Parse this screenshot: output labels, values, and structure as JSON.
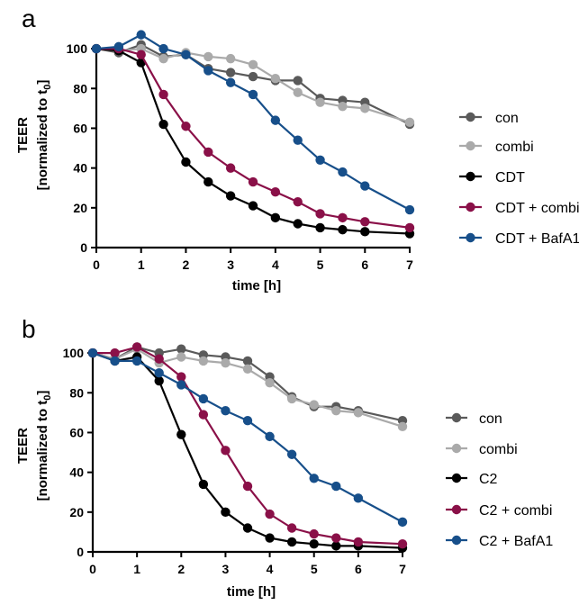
{
  "chart_data": [
    {
      "panel_label": "a",
      "type": "line",
      "xlabel": "time [h]",
      "ylabel_main": "TEER",
      "ylabel_sub": "[normalized to t",
      "ylabel_sub_subscript": "0",
      "ylabel_sub_end": "]",
      "xlim": [
        0,
        7
      ],
      "ylim": [
        0,
        110
      ],
      "xticks": [
        0,
        1,
        2,
        3,
        4,
        5,
        6,
        7
      ],
      "yticks": [
        0,
        20,
        40,
        60,
        80,
        100
      ],
      "legend_placement": "right",
      "grid": false,
      "x": [
        0,
        0.5,
        1,
        1.5,
        2,
        2.5,
        3,
        3.5,
        4,
        4.5,
        5,
        5.5,
        6,
        7
      ],
      "series": [
        {
          "name": "con",
          "color": "#5a5a5a",
          "values": [
            100,
            98,
            102,
            96,
            97,
            90,
            88,
            86,
            84,
            84,
            75,
            74,
            73,
            62
          ]
        },
        {
          "name": "combi",
          "color": "#aaaaaa",
          "values": [
            100,
            99,
            100,
            95,
            98,
            96,
            95,
            92,
            85,
            78,
            73,
            71,
            70,
            63
          ]
        },
        {
          "name": "CDT",
          "color": "#000000",
          "values": [
            100,
            99,
            93,
            62,
            43,
            33,
            26,
            21,
            15,
            12,
            10,
            9,
            8,
            7
          ]
        },
        {
          "name": "CDT + combi",
          "color": "#8a1048",
          "values": [
            100,
            100,
            97,
            77,
            61,
            48,
            40,
            33,
            28,
            23,
            17,
            15,
            13,
            10
          ]
        },
        {
          "name": "CDT + BafA1",
          "color": "#174f8a",
          "values": [
            100,
            101,
            107,
            100,
            97,
            89,
            83,
            77,
            64,
            54,
            44,
            38,
            31,
            19
          ]
        }
      ]
    },
    {
      "panel_label": "b",
      "type": "line",
      "xlabel": "time [h]",
      "ylabel_main": "TEER",
      "ylabel_sub": "[normalized to t",
      "ylabel_sub_subscript": "0",
      "ylabel_sub_end": "]",
      "xlim": [
        0,
        7
      ],
      "ylim": [
        0,
        110
      ],
      "xticks": [
        0,
        1,
        2,
        3,
        4,
        5,
        6,
        7
      ],
      "yticks": [
        0,
        20,
        40,
        60,
        80,
        100
      ],
      "legend_placement": "right",
      "grid": false,
      "x": [
        0,
        0.5,
        1,
        1.5,
        2,
        2.5,
        3,
        3.5,
        4,
        4.5,
        5,
        5.5,
        6,
        7
      ],
      "series": [
        {
          "name": "con",
          "color": "#5a5a5a",
          "values": [
            100,
            97,
            103,
            100,
            102,
            99,
            98,
            96,
            88,
            78,
            73,
            73,
            71,
            66
          ]
        },
        {
          "name": "combi",
          "color": "#aaaaaa",
          "values": [
            100,
            97,
            102,
            95,
            98,
            96,
            95,
            92,
            85,
            77,
            74,
            71,
            70,
            63
          ]
        },
        {
          "name": "C2",
          "color": "#000000",
          "values": [
            100,
            96,
            98,
            86,
            59,
            34,
            20,
            12,
            7,
            5,
            4,
            3,
            3,
            2
          ]
        },
        {
          "name": "C2 + combi",
          "color": "#8a1048",
          "values": [
            100,
            100,
            103,
            97,
            88,
            69,
            51,
            33,
            19,
            12,
            9,
            7,
            5,
            4
          ]
        },
        {
          "name": "C2 + BafA1",
          "color": "#174f8a",
          "values": [
            100,
            96,
            96,
            90,
            84,
            77,
            71,
            66,
            58,
            49,
            37,
            33,
            27,
            15
          ]
        }
      ]
    }
  ]
}
